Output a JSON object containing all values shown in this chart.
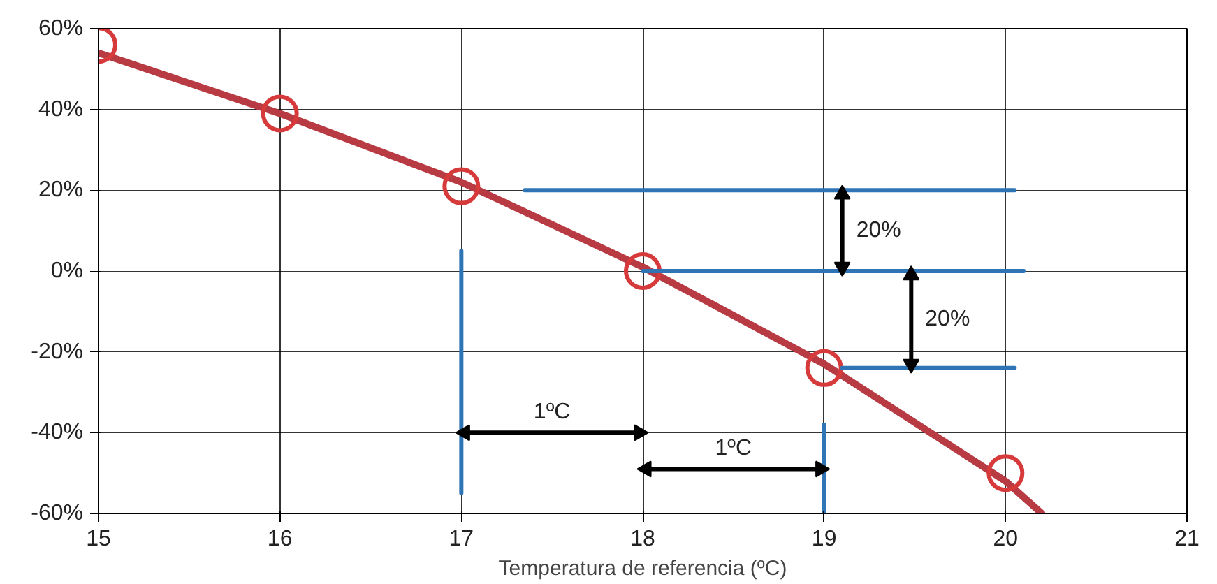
{
  "chart_data": {
    "type": "line",
    "xlabel": "Temperatura de referencia (ºC)",
    "xlim": [
      15,
      21
    ],
    "ylim": [
      -60,
      60
    ],
    "xticks": [
      15,
      16,
      17,
      18,
      19,
      20,
      21
    ],
    "yticks": [
      {
        "value": -60,
        "label": "-60%"
      },
      {
        "value": -40,
        "label": "-40%"
      },
      {
        "value": -20,
        "label": "-20%"
      },
      {
        "value": 0,
        "label": "0%"
      },
      {
        "value": 20,
        "label": "20%"
      },
      {
        "value": 40,
        "label": "40%"
      },
      {
        "value": 60,
        "label": "60%"
      }
    ],
    "grid": true,
    "series": [
      {
        "color": "#b83a43",
        "x": [
          15,
          16,
          17,
          18,
          19,
          20,
          20.2
        ],
        "values": [
          54,
          39,
          22,
          1,
          -23,
          -52,
          -60
        ]
      },
      {
        "type": "scatter",
        "marker": "circle",
        "color": "#d63a3a",
        "x": [
          15,
          16,
          17,
          18,
          19,
          20
        ],
        "values": [
          56,
          39,
          21,
          0,
          -24,
          -50
        ]
      },
      {
        "type": "line",
        "color": "#2f74b5",
        "x": [
          17.35,
          20.05
        ],
        "values": [
          20,
          20
        ]
      },
      {
        "type": "line",
        "color": "#2f74b5",
        "x": [
          18,
          20.1
        ],
        "values": [
          0,
          0
        ]
      },
      {
        "type": "line",
        "color": "#2f74b5",
        "x": [
          19.1,
          20.05
        ],
        "values": [
          -24,
          -24
        ]
      },
      {
        "type": "line",
        "color": "#2f74b5",
        "x": [
          17,
          17
        ],
        "values": [
          5,
          -55
        ]
      },
      {
        "type": "line",
        "color": "#2f74b5",
        "x": [
          19,
          19
        ],
        "values": [
          -38,
          -60
        ]
      },
      {
        "type": "line",
        "name": "20%",
        "marker": "triangle",
        "color": "#000000",
        "x": [
          19.1,
          19.1
        ],
        "values": [
          19,
          1
        ]
      },
      {
        "type": "line",
        "name": "20%",
        "marker": "triangle",
        "color": "#000000",
        "x": [
          19.48,
          19.48
        ],
        "values": [
          -1,
          -23
        ]
      },
      {
        "type": "line",
        "name": "1ºC",
        "marker": "triangle",
        "color": "#000000",
        "x": [
          17.02,
          17.98
        ],
        "values": [
          -40,
          -40
        ]
      },
      {
        "type": "line",
        "name": "1ºC",
        "marker": "triangle",
        "color": "#000000",
        "x": [
          18.02,
          18.98
        ],
        "values": [
          -49,
          -49
        ]
      }
    ]
  }
}
